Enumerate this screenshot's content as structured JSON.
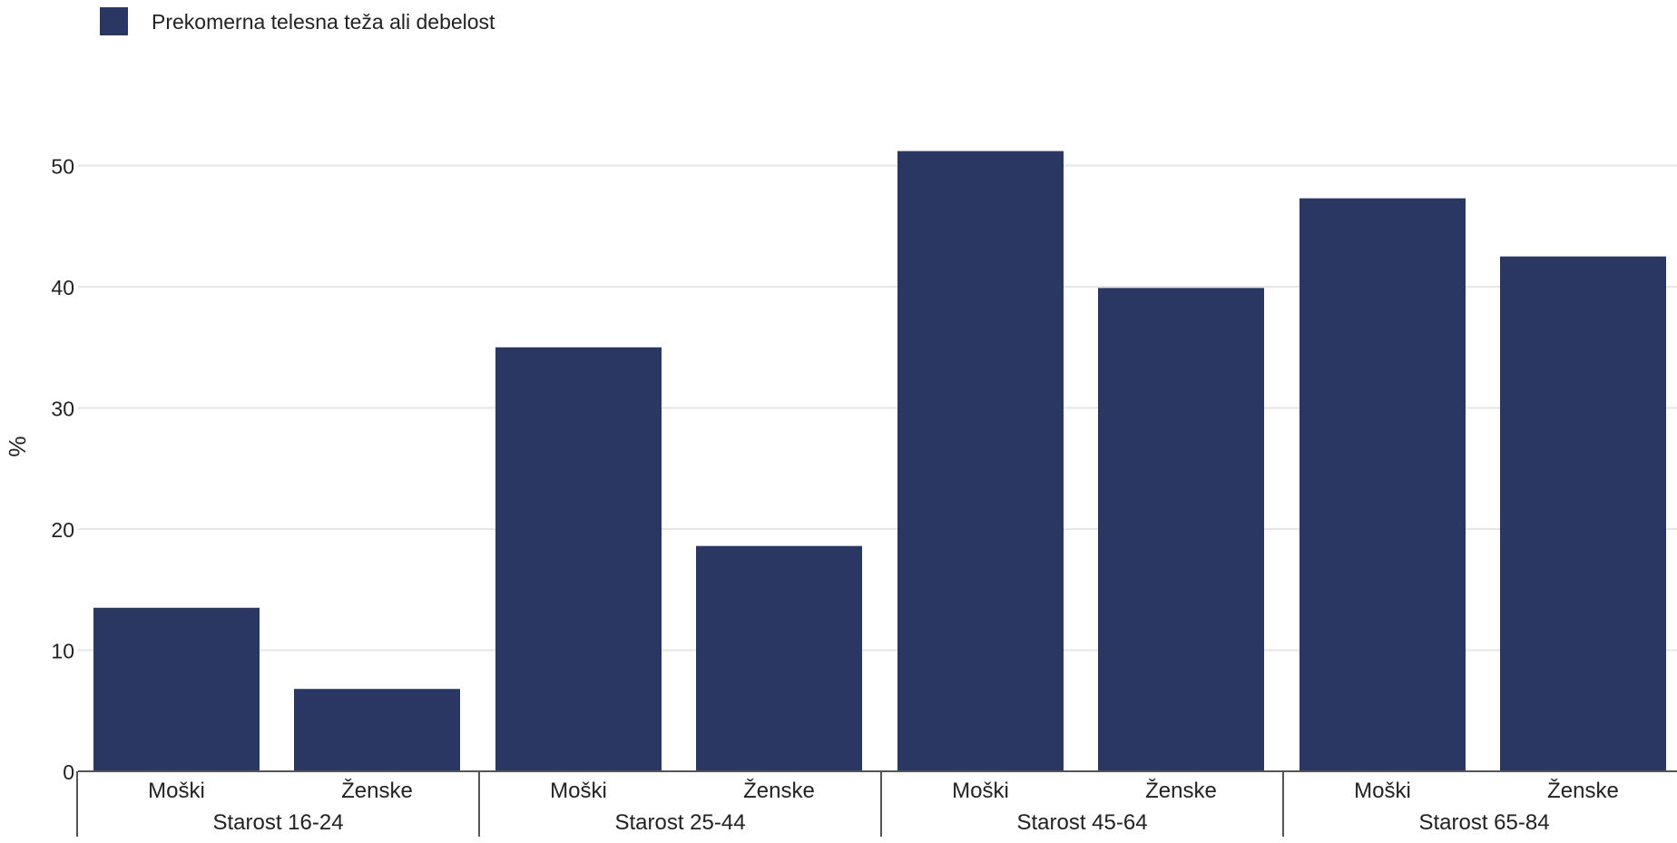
{
  "chart_data": {
    "type": "bar",
    "legend": {
      "label": "Prekomerna telesna teža ali debelost",
      "placement": "top-left"
    },
    "ylabel": "%",
    "ylim": [
      0,
      55
    ],
    "yticks": [
      0,
      10,
      20,
      30,
      40,
      50
    ],
    "grid": true,
    "bar_color": "#2b3763",
    "groups": [
      {
        "label": "Starost 16-24",
        "bars": [
          {
            "label": "Moški",
            "value": 13.5
          },
          {
            "label": "Ženske",
            "value": 6.8
          }
        ]
      },
      {
        "label": "Starost 25-44",
        "bars": [
          {
            "label": "Moški",
            "value": 35.0
          },
          {
            "label": "Ženske",
            "value": 18.6
          }
        ]
      },
      {
        "label": "Starost 45-64",
        "bars": [
          {
            "label": "Moški",
            "value": 51.2
          },
          {
            "label": "Ženske",
            "value": 39.9
          }
        ]
      },
      {
        "label": "Starost 65-84",
        "bars": [
          {
            "label": "Moški",
            "value": 47.3
          },
          {
            "label": "Ženske",
            "value": 42.5
          }
        ]
      }
    ]
  }
}
